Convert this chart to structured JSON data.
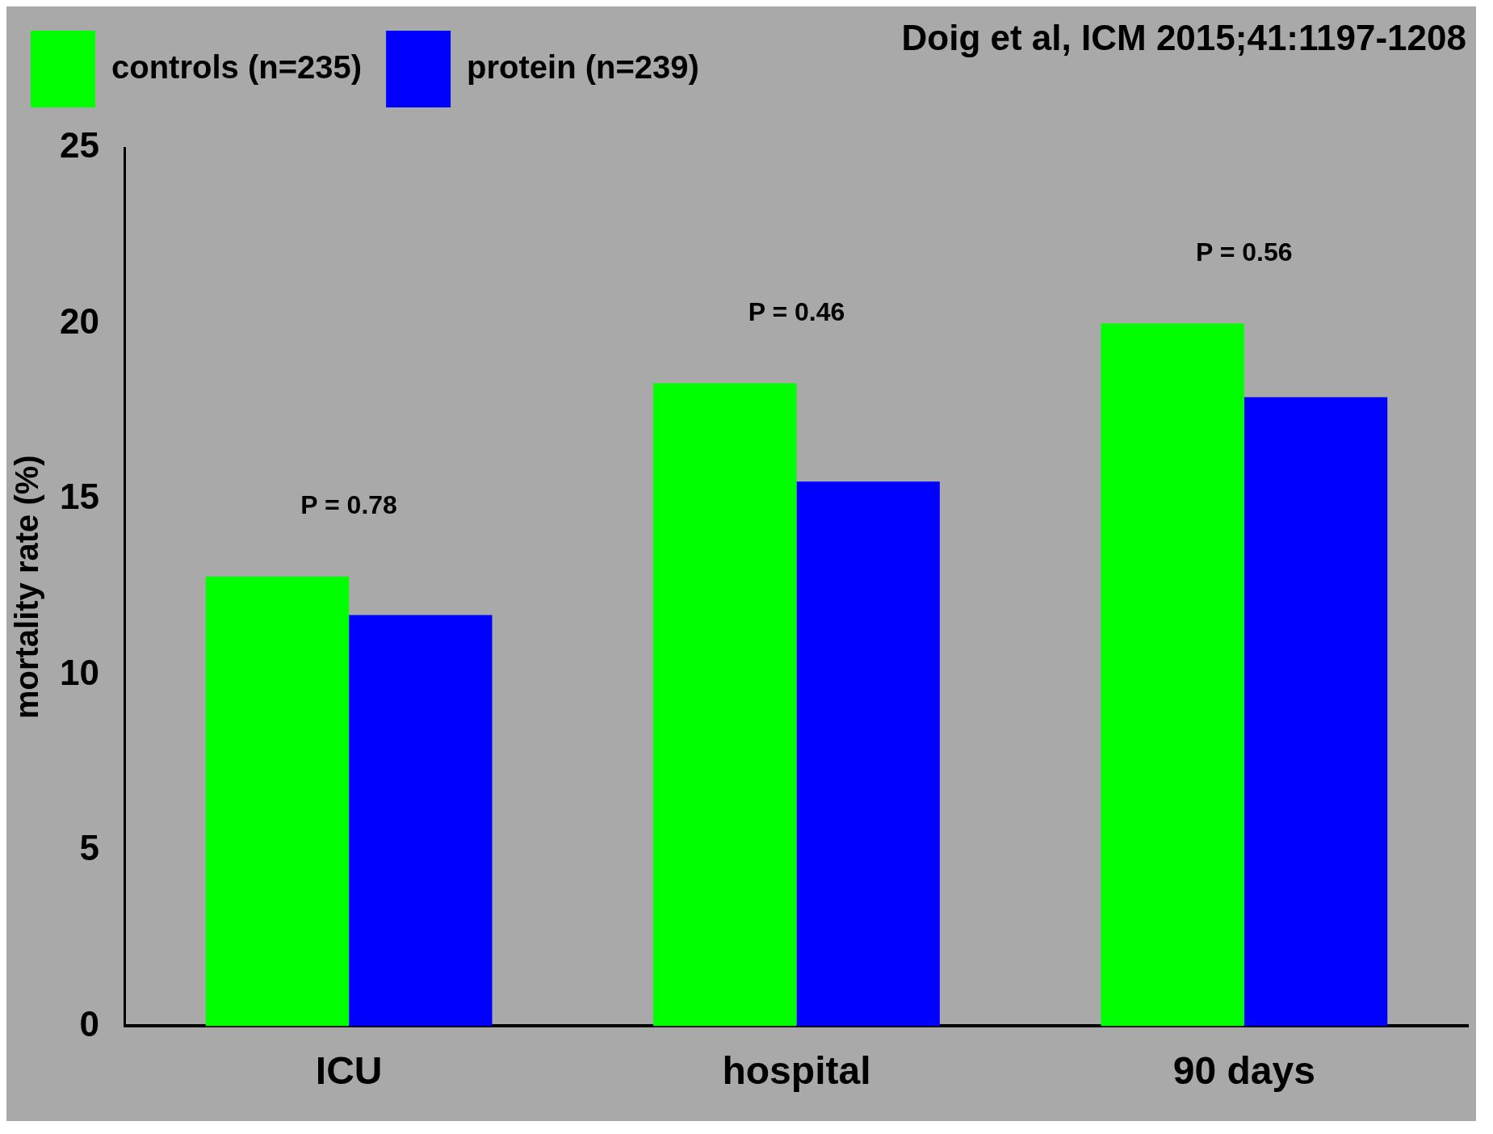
{
  "chart_data": {
    "type": "bar",
    "ylabel": "mortality rate (%)",
    "categories": [
      "ICU",
      "hospital",
      "90 days"
    ],
    "series": [
      {
        "name": "controls (n=235)",
        "color": "#00ff00",
        "values": [
          12.8,
          18.3,
          20.0
        ]
      },
      {
        "name": "protein (n=239)",
        "color": "#0000ff",
        "values": [
          11.7,
          15.5,
          17.9
        ]
      }
    ],
    "ylim": [
      0,
      25
    ],
    "yticks": [
      0,
      5,
      10,
      15,
      20,
      25
    ],
    "grid": false,
    "legend": "top left",
    "annotations": [
      "Doig et al, ICM 2015;41:1197-1208",
      "P = 0.78",
      "P = 0.46",
      "P = 0.56"
    ]
  }
}
